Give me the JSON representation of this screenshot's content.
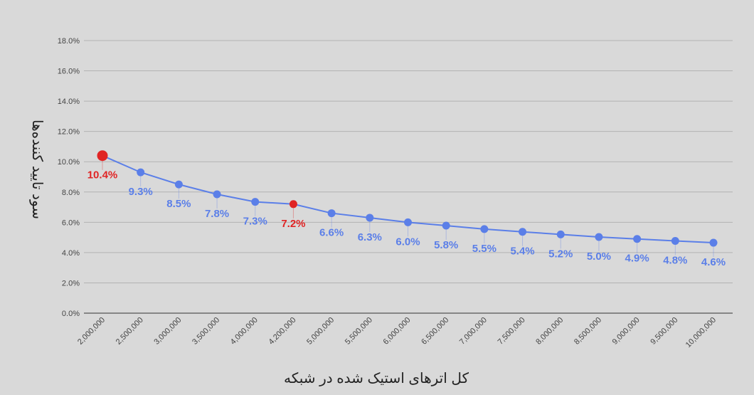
{
  "chart_data": {
    "type": "line",
    "title": "",
    "xlabel": "کل اترهای استیک شده در شبکه",
    "ylabel": "سود تایید کننده‌ها",
    "ylim": [
      0,
      18
    ],
    "y_ticks": [
      "0.0%",
      "2.0%",
      "4.0%",
      "6.0%",
      "8.0%",
      "10.0%",
      "12.0%",
      "14.0%",
      "16.0%",
      "18.0%"
    ],
    "grid": true,
    "legend": "none",
    "categories": [
      "2,000,000",
      "2,500,000",
      "3,000,000",
      "3,500,000",
      "4,000,000",
      "4,200,000",
      "5,000,000",
      "5,500,000",
      "6,000,000",
      "6,500,000",
      "7,000,000",
      "7,500,000",
      "8,000,000",
      "8,500,000",
      "9,000,000",
      "9,500,000",
      "10,000,000"
    ],
    "series": [
      {
        "values": [
          10.4,
          9.3,
          8.5,
          7.85,
          7.35,
          7.2,
          6.6,
          6.3,
          6.0,
          5.78,
          5.55,
          5.37,
          5.2,
          5.03,
          4.9,
          4.77,
          4.65
        ],
        "labels": [
          "10.4%",
          "9.3%",
          "8.5%",
          "7.8%",
          "7.3%",
          "7.2%",
          "6.6%",
          "6.3%",
          "6.0%",
          "5.8%",
          "5.5%",
          "5.4%",
          "5.2%",
          "5.0%",
          "4.9%",
          "4.8%",
          "4.6%"
        ],
        "highlighted": [
          0,
          5
        ]
      }
    ],
    "colors": {
      "series": "#5b7fe8",
      "highlight": "#e02424",
      "grid": "#b3b3b3",
      "axis": "#333333"
    }
  }
}
